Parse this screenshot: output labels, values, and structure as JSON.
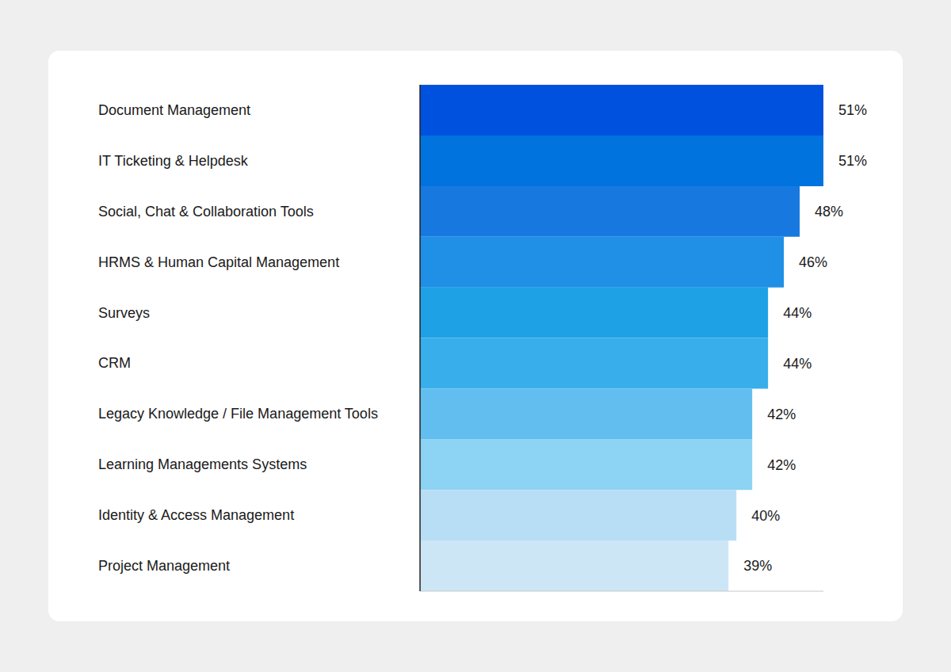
{
  "chart_data": {
    "type": "bar",
    "orientation": "horizontal",
    "categories": [
      "Document Management",
      "IT Ticketing & Helpdesk",
      "Social, Chat & Collaboration Tools",
      "HRMS & Human Capital Management",
      "Surveys",
      "CRM",
      "Legacy Knowledge / File Management Tools",
      "Learning Managements Systems",
      "Identity & Access Management",
      "Project Management"
    ],
    "values": [
      51,
      51,
      48,
      46,
      44,
      44,
      42,
      42,
      40,
      39
    ],
    "value_labels": [
      "51%",
      "51%",
      "48%",
      "46%",
      "44%",
      "44%",
      "42%",
      "42%",
      "40%",
      "39%"
    ],
    "colors": [
      "#0052de",
      "#0073de",
      "#1779e0",
      "#208fe6",
      "#1fa1e6",
      "#38aeea",
      "#63bef0",
      "#8dd3f3",
      "#b8def6",
      "#cde6f6"
    ],
    "xlim": [
      0,
      51
    ],
    "xticks": [],
    "data_labels": true,
    "tick_labels": "y",
    "grid": false
  }
}
